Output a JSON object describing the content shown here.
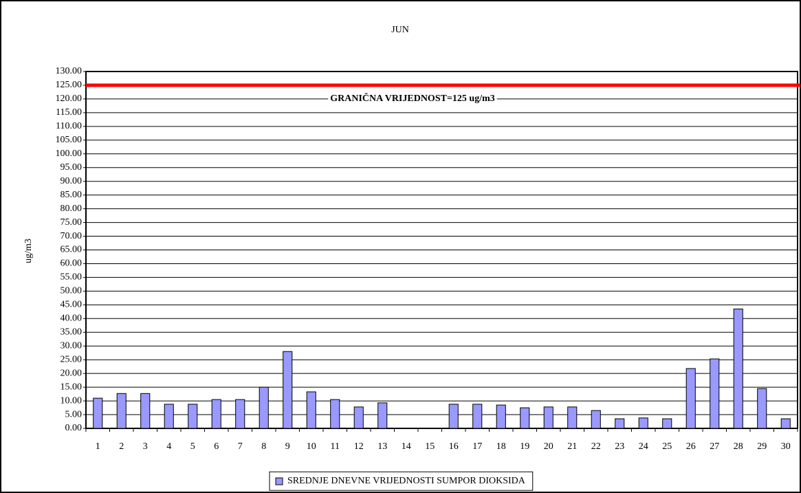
{
  "chart_data": {
    "type": "bar",
    "title": "JUN",
    "y_label": "ug/m3",
    "categories": [
      "1",
      "2",
      "3",
      "4",
      "5",
      "6",
      "7",
      "8",
      "9",
      "10",
      "11",
      "12",
      "13",
      "14",
      "15",
      "16",
      "17",
      "18",
      "19",
      "20",
      "21",
      "22",
      "23",
      "24",
      "25",
      "26",
      "27",
      "28",
      "29",
      "30"
    ],
    "series": [
      {
        "name": "SREDNJE DNEVNE VRIJEDNOSTI SUMPOR DIOKSIDA",
        "color": "#9999ff",
        "values": [
          11,
          12.7,
          12.7,
          8.8,
          8.8,
          10.5,
          10.5,
          15,
          28,
          13.3,
          10.5,
          7.8,
          9.3,
          null,
          null,
          8.8,
          8.8,
          8.5,
          7.5,
          7.8,
          7.8,
          6.5,
          3.5,
          3.8,
          3.5,
          21.8,
          25.3,
          43.5,
          14.5,
          3.5
        ]
      }
    ],
    "threshold": {
      "value": 125,
      "color": "#ff0000",
      "label": "GRANIČNA VRIJEDNOST=125 ug/m3"
    },
    "ylim": [
      0,
      130
    ],
    "yticks": [
      {
        "value": 0,
        "label": "0.00"
      },
      {
        "value": 5,
        "label": "5.00"
      },
      {
        "value": 10,
        "label": "10.00"
      },
      {
        "value": 15,
        "label": "15.00"
      },
      {
        "value": 20,
        "label": "20.00"
      },
      {
        "value": 25,
        "label": "25.00"
      },
      {
        "value": 30,
        "label": "30.00"
      },
      {
        "value": 35,
        "label": "35.00"
      },
      {
        "value": 40,
        "label": "40.00"
      },
      {
        "value": 45,
        "label": "45.00"
      },
      {
        "value": 50,
        "label": "50.00"
      },
      {
        "value": 55,
        "label": "55.00"
      },
      {
        "value": 60,
        "label": "60.00"
      },
      {
        "value": 65,
        "label": "65.00"
      },
      {
        "value": 70,
        "label": "70.00"
      },
      {
        "value": 75,
        "label": "75.00"
      },
      {
        "value": 80,
        "label": "80.00"
      },
      {
        "value": 85,
        "label": "85.00"
      },
      {
        "value": 90,
        "label": "90.00"
      },
      {
        "value": 95,
        "label": "95.00"
      },
      {
        "value": 100,
        "label": "100.00"
      },
      {
        "value": 105,
        "label": "105.00"
      },
      {
        "value": 110,
        "label": "110.00"
      },
      {
        "value": 115,
        "label": "115.00"
      },
      {
        "value": 120,
        "label": "120.00"
      },
      {
        "value": 125,
        "label": "125.00"
      },
      {
        "value": 130,
        "label": "130.00"
      }
    ],
    "grid": true,
    "legend": "bottom"
  }
}
